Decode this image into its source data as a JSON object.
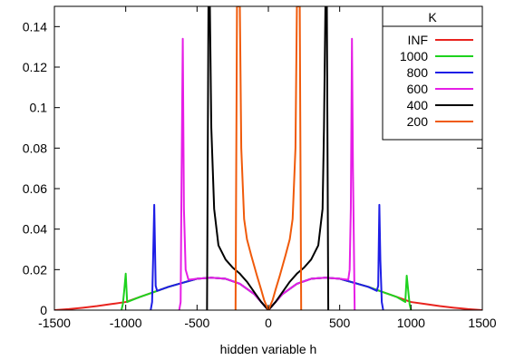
{
  "chart_data": {
    "type": "line",
    "title": "",
    "xlabel": "hidden variable h",
    "ylabel": "",
    "xlim": [
      -1500,
      1500
    ],
    "ylim": [
      0,
      0.15
    ],
    "xticks": [
      -1500,
      -1000,
      -500,
      0,
      500,
      1000,
      1500
    ],
    "xtick_labels": [
      "-1500",
      "-1000",
      "-500",
      "0",
      "500",
      "1000",
      "1500"
    ],
    "yticks": [
      0,
      0.02,
      0.04,
      0.06,
      0.08,
      0.1,
      0.12,
      0.14
    ],
    "ytick_labels": [
      "0",
      "0.02",
      "0.04",
      "0.06",
      "0.08",
      "0.1",
      "0.12",
      "0.14"
    ],
    "grid": false,
    "legend": {
      "title": "K",
      "placement": "top-right"
    },
    "series": [
      {
        "name": "INF",
        "color": "#e8231e",
        "x": [
          -1500,
          -1400,
          -1300,
          -1200,
          -1100,
          -1000,
          -900,
          -800,
          -700,
          -600,
          -500,
          -400,
          -300,
          -200,
          -100,
          -50,
          0,
          50,
          100,
          200,
          300,
          400,
          500,
          600,
          700,
          800,
          900,
          1000,
          1100,
          1200,
          1300,
          1400,
          1500
        ],
        "y": [
          0,
          0.0005,
          0.0012,
          0.002,
          0.003,
          0.004,
          0.0065,
          0.009,
          0.0115,
          0.0135,
          0.0155,
          0.016,
          0.0155,
          0.013,
          0.008,
          0.004,
          0,
          0.004,
          0.008,
          0.013,
          0.0155,
          0.016,
          0.0155,
          0.0135,
          0.0115,
          0.009,
          0.0065,
          0.004,
          0.003,
          0.002,
          0.0012,
          0.0005,
          0
        ]
      },
      {
        "name": "1000",
        "color": "#1ed21e",
        "x": [
          -1030,
          -1020,
          -1010,
          -1000,
          -990,
          -900,
          -800,
          -700,
          -600,
          -500,
          -400,
          -300,
          -200,
          -100,
          -50,
          0,
          50,
          100,
          200,
          300,
          400,
          500,
          600,
          700,
          800,
          900,
          960,
          970,
          980,
          990,
          1000
        ],
        "y": [
          0,
          0.003,
          0.01,
          0.018,
          0.004,
          0.0065,
          0.009,
          0.0115,
          0.0135,
          0.0155,
          0.016,
          0.0155,
          0.013,
          0.008,
          0.004,
          0,
          0.004,
          0.008,
          0.013,
          0.0155,
          0.016,
          0.0155,
          0.0135,
          0.0115,
          0.009,
          0.0065,
          0.004,
          0.017,
          0.01,
          0.003,
          0
        ]
      },
      {
        "name": "800",
        "color": "#1e1ee6",
        "x": [
          -825,
          -815,
          -808,
          -800,
          -790,
          -780,
          -700,
          -600,
          -500,
          -400,
          -300,
          -200,
          -100,
          -50,
          0,
          50,
          100,
          200,
          300,
          400,
          500,
          600,
          700,
          760,
          770,
          778,
          785,
          795,
          805
        ],
        "y": [
          0,
          0.004,
          0.025,
          0.052,
          0.012,
          0.0095,
          0.0115,
          0.0135,
          0.0155,
          0.016,
          0.0155,
          0.013,
          0.008,
          0.004,
          0,
          0.004,
          0.008,
          0.013,
          0.0155,
          0.016,
          0.0155,
          0.0135,
          0.0115,
          0.0095,
          0.012,
          0.052,
          0.025,
          0.004,
          0
        ]
      },
      {
        "name": "600",
        "color": "#e61ee6",
        "x": [
          -625,
          -615,
          -608,
          -600,
          -592,
          -580,
          -560,
          -500,
          -400,
          -300,
          -200,
          -100,
          -50,
          0,
          50,
          100,
          200,
          300,
          400,
          500,
          560,
          570,
          578,
          586,
          593,
          605
        ],
        "y": [
          0,
          0.004,
          0.07,
          0.134,
          0.05,
          0.02,
          0.015,
          0.0155,
          0.016,
          0.0155,
          0.013,
          0.008,
          0.004,
          0,
          0.004,
          0.008,
          0.013,
          0.0155,
          0.016,
          0.0155,
          0.015,
          0.02,
          0.05,
          0.134,
          0.07,
          0
        ]
      },
      {
        "name": "400",
        "color": "#000000",
        "x": [
          -430,
          -420,
          -410,
          -400,
          -380,
          -350,
          -300,
          -250,
          -200,
          -150,
          -100,
          -50,
          0,
          50,
          100,
          150,
          200,
          250,
          300,
          350,
          380,
          390,
          400,
          410,
          420
        ],
        "y": [
          0,
          0.15,
          0.15,
          0.09,
          0.05,
          0.032,
          0.025,
          0.021,
          0.018,
          0.014,
          0.009,
          0.004,
          0,
          0.004,
          0.009,
          0.014,
          0.018,
          0.021,
          0.025,
          0.032,
          0.05,
          0.09,
          0.15,
          0.15,
          0
        ]
      },
      {
        "name": "200",
        "color": "#f05a0a",
        "x": [
          -230,
          -220,
          -210,
          -200,
          -190,
          -170,
          -150,
          -120,
          -100,
          -80,
          -50,
          -30,
          0,
          30,
          50,
          80,
          100,
          120,
          150,
          170,
          190,
          200,
          210,
          220,
          230
        ],
        "y": [
          0,
          0.15,
          0.15,
          0.15,
          0.08,
          0.045,
          0.035,
          0.027,
          0.022,
          0.017,
          0.01,
          0.005,
          0,
          0.005,
          0.01,
          0.017,
          0.022,
          0.027,
          0.035,
          0.045,
          0.08,
          0.15,
          0.15,
          0.15,
          0
        ]
      }
    ]
  }
}
